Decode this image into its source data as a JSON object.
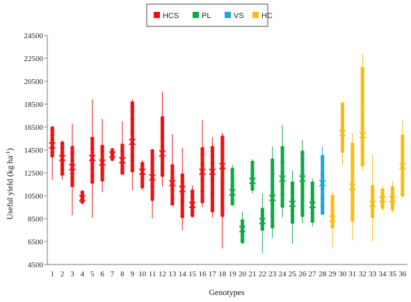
{
  "chart_data": {
    "type": "scatter",
    "xlabel": "Genotypes",
    "ylabel": "Useful yield (kg ha",
    "ylabel_sup": "-1",
    "ylabel_close": ")",
    "ylim": [
      4500,
      24500
    ],
    "yticks": [
      4500,
      6500,
      8500,
      10500,
      12500,
      14500,
      16500,
      18500,
      20500,
      22500,
      24500
    ],
    "grid": false,
    "legend_position": "top-center",
    "groups": [
      {
        "name": "HCS",
        "color": "#ee1111",
        "genotypes": [
          1,
          2,
          3,
          4,
          5,
          6,
          7,
          8,
          9,
          10,
          11,
          12,
          13,
          14,
          15,
          16,
          17,
          18
        ]
      },
      {
        "name": "PL",
        "color": "#12a64b",
        "genotypes": [
          19,
          20,
          21,
          22,
          23,
          24,
          25,
          26,
          27
        ]
      },
      {
        "name": "VS",
        "color": "#1fa3d8",
        "genotypes": [
          28
        ]
      },
      {
        "name": "HC",
        "color": "#f7bd12",
        "genotypes": [
          29,
          30,
          31,
          32,
          33,
          34,
          35,
          36
        ]
      }
    ],
    "genotypes": [
      {
        "g": 1,
        "min": 11900,
        "max": 16600,
        "mean": 14900,
        "points": [
          16400,
          16200,
          15800,
          15400,
          15100,
          14600,
          14300,
          14000
        ]
      },
      {
        "g": 2,
        "min": 11900,
        "max": 15300,
        "mean": 13800,
        "points": [
          15100,
          14700,
          14300,
          13700,
          13200,
          12800,
          12400
        ]
      },
      {
        "g": 3,
        "min": 8800,
        "max": 16800,
        "mean": 13000,
        "points": [
          14700,
          14200,
          13600,
          12900,
          12400,
          11900,
          11400
        ]
      },
      {
        "g": 4,
        "min": 9900,
        "max": 10900,
        "mean": 10300,
        "points": [
          10800,
          10500,
          10300,
          10100,
          9950
        ]
      },
      {
        "g": 5,
        "min": 8600,
        "max": 18900,
        "mean": 13800,
        "points": [
          15500,
          14600,
          13600,
          12900,
          12300,
          11700
        ]
      },
      {
        "g": 6,
        "min": 10800,
        "max": 17200,
        "mean": 13400,
        "points": [
          14800,
          14400,
          13500,
          12800,
          12400,
          11900
        ]
      },
      {
        "g": 7,
        "min": 13600,
        "max": 14600,
        "mean": 14100,
        "points": [
          14500,
          14300,
          14100,
          13900,
          13700
        ]
      },
      {
        "g": 8,
        "min": 12300,
        "max": 17000,
        "mean": 13600,
        "points": [
          14900,
          14400,
          13800,
          13300,
          12800,
          12500
        ]
      },
      {
        "g": 9,
        "min": 11000,
        "max": 18900,
        "mean": 15200,
        "points": [
          18600,
          18300,
          17900,
          17200,
          16100,
          15100,
          14600,
          14000,
          13600,
          12700
        ]
      },
      {
        "g": 10,
        "min": 11000,
        "max": 13600,
        "mean": 12600,
        "points": [
          13300,
          12800,
          12400,
          12000,
          11300
        ]
      },
      {
        "g": 11,
        "min": 8500,
        "max": 14600,
        "mean": 12100,
        "points": [
          14400,
          13400,
          12700,
          12000,
          11300,
          10200
        ]
      },
      {
        "g": 12,
        "min": 11300,
        "max": 19600,
        "mean": 14200,
        "points": [
          17300,
          15600,
          14800,
          14300,
          13800,
          12900,
          12300
        ]
      },
      {
        "g": 13,
        "min": 9700,
        "max": 15900,
        "mean": 11600,
        "points": [
          13100,
          12600,
          12100,
          11600,
          11000,
          10300,
          9800
        ]
      },
      {
        "g": 14,
        "min": 7500,
        "max": 14700,
        "mean": 11100,
        "points": [
          12300,
          11800,
          11300,
          10700,
          10000,
          9300,
          8700
        ]
      },
      {
        "g": 15,
        "min": 8600,
        "max": 11400,
        "mean": 9700,
        "points": [
          10900,
          10400,
          9900,
          9500,
          9100,
          8800
        ]
      },
      {
        "g": 16,
        "min": 9500,
        "max": 17100,
        "mean": 12600,
        "points": [
          14600,
          14100,
          13300,
          12600,
          11800,
          10900,
          10000
        ]
      },
      {
        "g": 17,
        "min": 8600,
        "max": 15600,
        "mean": 12600,
        "points": [
          14700,
          14000,
          13300,
          12600,
          11900,
          10700,
          9200
        ]
      },
      {
        "g": 18,
        "min": 5900,
        "max": 16000,
        "mean": 13100,
        "points": [
          15600,
          15100,
          14600,
          13800,
          12800,
          11600,
          8800
        ]
      },
      {
        "g": 19,
        "min": 9800,
        "max": 13200,
        "mean": 10800,
        "points": [
          12800,
          12000,
          11400,
          10900,
          10500,
          10100,
          9800
        ]
      },
      {
        "g": 20,
        "min": 6300,
        "max": 9100,
        "mean": 7600,
        "points": [
          8300,
          7900,
          7600,
          7300,
          7000,
          6700,
          6500
        ]
      },
      {
        "g": 21,
        "min": 10700,
        "max": 13700,
        "mean": 11800,
        "points": [
          13400,
          12500,
          12000,
          11600,
          11100
        ]
      },
      {
        "g": 22,
        "min": 5500,
        "max": 10700,
        "mean": 8300,
        "points": [
          9300,
          8800,
          8300,
          7900,
          7600
        ]
      },
      {
        "g": 23,
        "min": 6800,
        "max": 14800,
        "mean": 10300,
        "points": [
          13600,
          12400,
          11400,
          10600,
          9800,
          8800,
          7800
        ]
      },
      {
        "g": 24,
        "min": 8600,
        "max": 16700,
        "mean": 12000,
        "points": [
          14700,
          13400,
          12600,
          12000,
          11400,
          10600,
          9600
        ]
      },
      {
        "g": 25,
        "min": 6300,
        "max": 12700,
        "mean": 9800,
        "points": [
          11600,
          10800,
          10200,
          9700,
          9200,
          8700,
          8200
        ]
      },
      {
        "g": 26,
        "min": 8100,
        "max": 15400,
        "mean": 12000,
        "points": [
          14300,
          13700,
          12400,
          11400,
          10500,
          9600,
          8800
        ]
      },
      {
        "g": 27,
        "min": 7800,
        "max": 12000,
        "mean": 9700,
        "points": [
          11600,
          10700,
          10000,
          9500,
          9000,
          8300
        ]
      },
      {
        "g": 28,
        "min": 8800,
        "max": 14800,
        "mean": 11600,
        "points": [
          13900,
          12400,
          11700,
          11100,
          10300,
          9500,
          9000
        ]
      },
      {
        "g": 29,
        "min": 5900,
        "max": 10800,
        "mean": 8500,
        "points": [
          10400,
          9600,
          8900,
          8500,
          8100,
          7800
        ]
      },
      {
        "g": 30,
        "min": 13200,
        "max": 18700,
        "mean": 16000,
        "points": [
          18500,
          17600,
          16800,
          16100,
          15500,
          15000,
          14400
        ]
      },
      {
        "g": 31,
        "min": 6600,
        "max": 16000,
        "mean": 11300,
        "points": [
          15000,
          13600,
          12400,
          11100,
          10200,
          9300,
          8400
        ]
      },
      {
        "g": 32,
        "min": 12700,
        "max": 22900,
        "mean": 15800,
        "points": [
          21600,
          17900,
          16400,
          15600,
          14800,
          13800,
          13200
        ]
      },
      {
        "g": 33,
        "min": 6500,
        "max": 14100,
        "mean": 9800,
        "points": [
          11300,
          10600,
          10000,
          9600,
          9100,
          8700
        ]
      },
      {
        "g": 34,
        "min": 9200,
        "max": 11400,
        "mean": 10200,
        "points": [
          11000,
          10600,
          10200,
          9900,
          9500
        ]
      },
      {
        "g": 35,
        "min": 9000,
        "max": 11800,
        "mean": 10200,
        "points": [
          11200,
          10700,
          10300,
          9900,
          9400
        ]
      },
      {
        "g": 36,
        "min": 10300,
        "max": 17100,
        "mean": 13100,
        "points": [
          15700,
          14700,
          13900,
          13100,
          12300,
          11500,
          10600
        ]
      }
    ]
  }
}
